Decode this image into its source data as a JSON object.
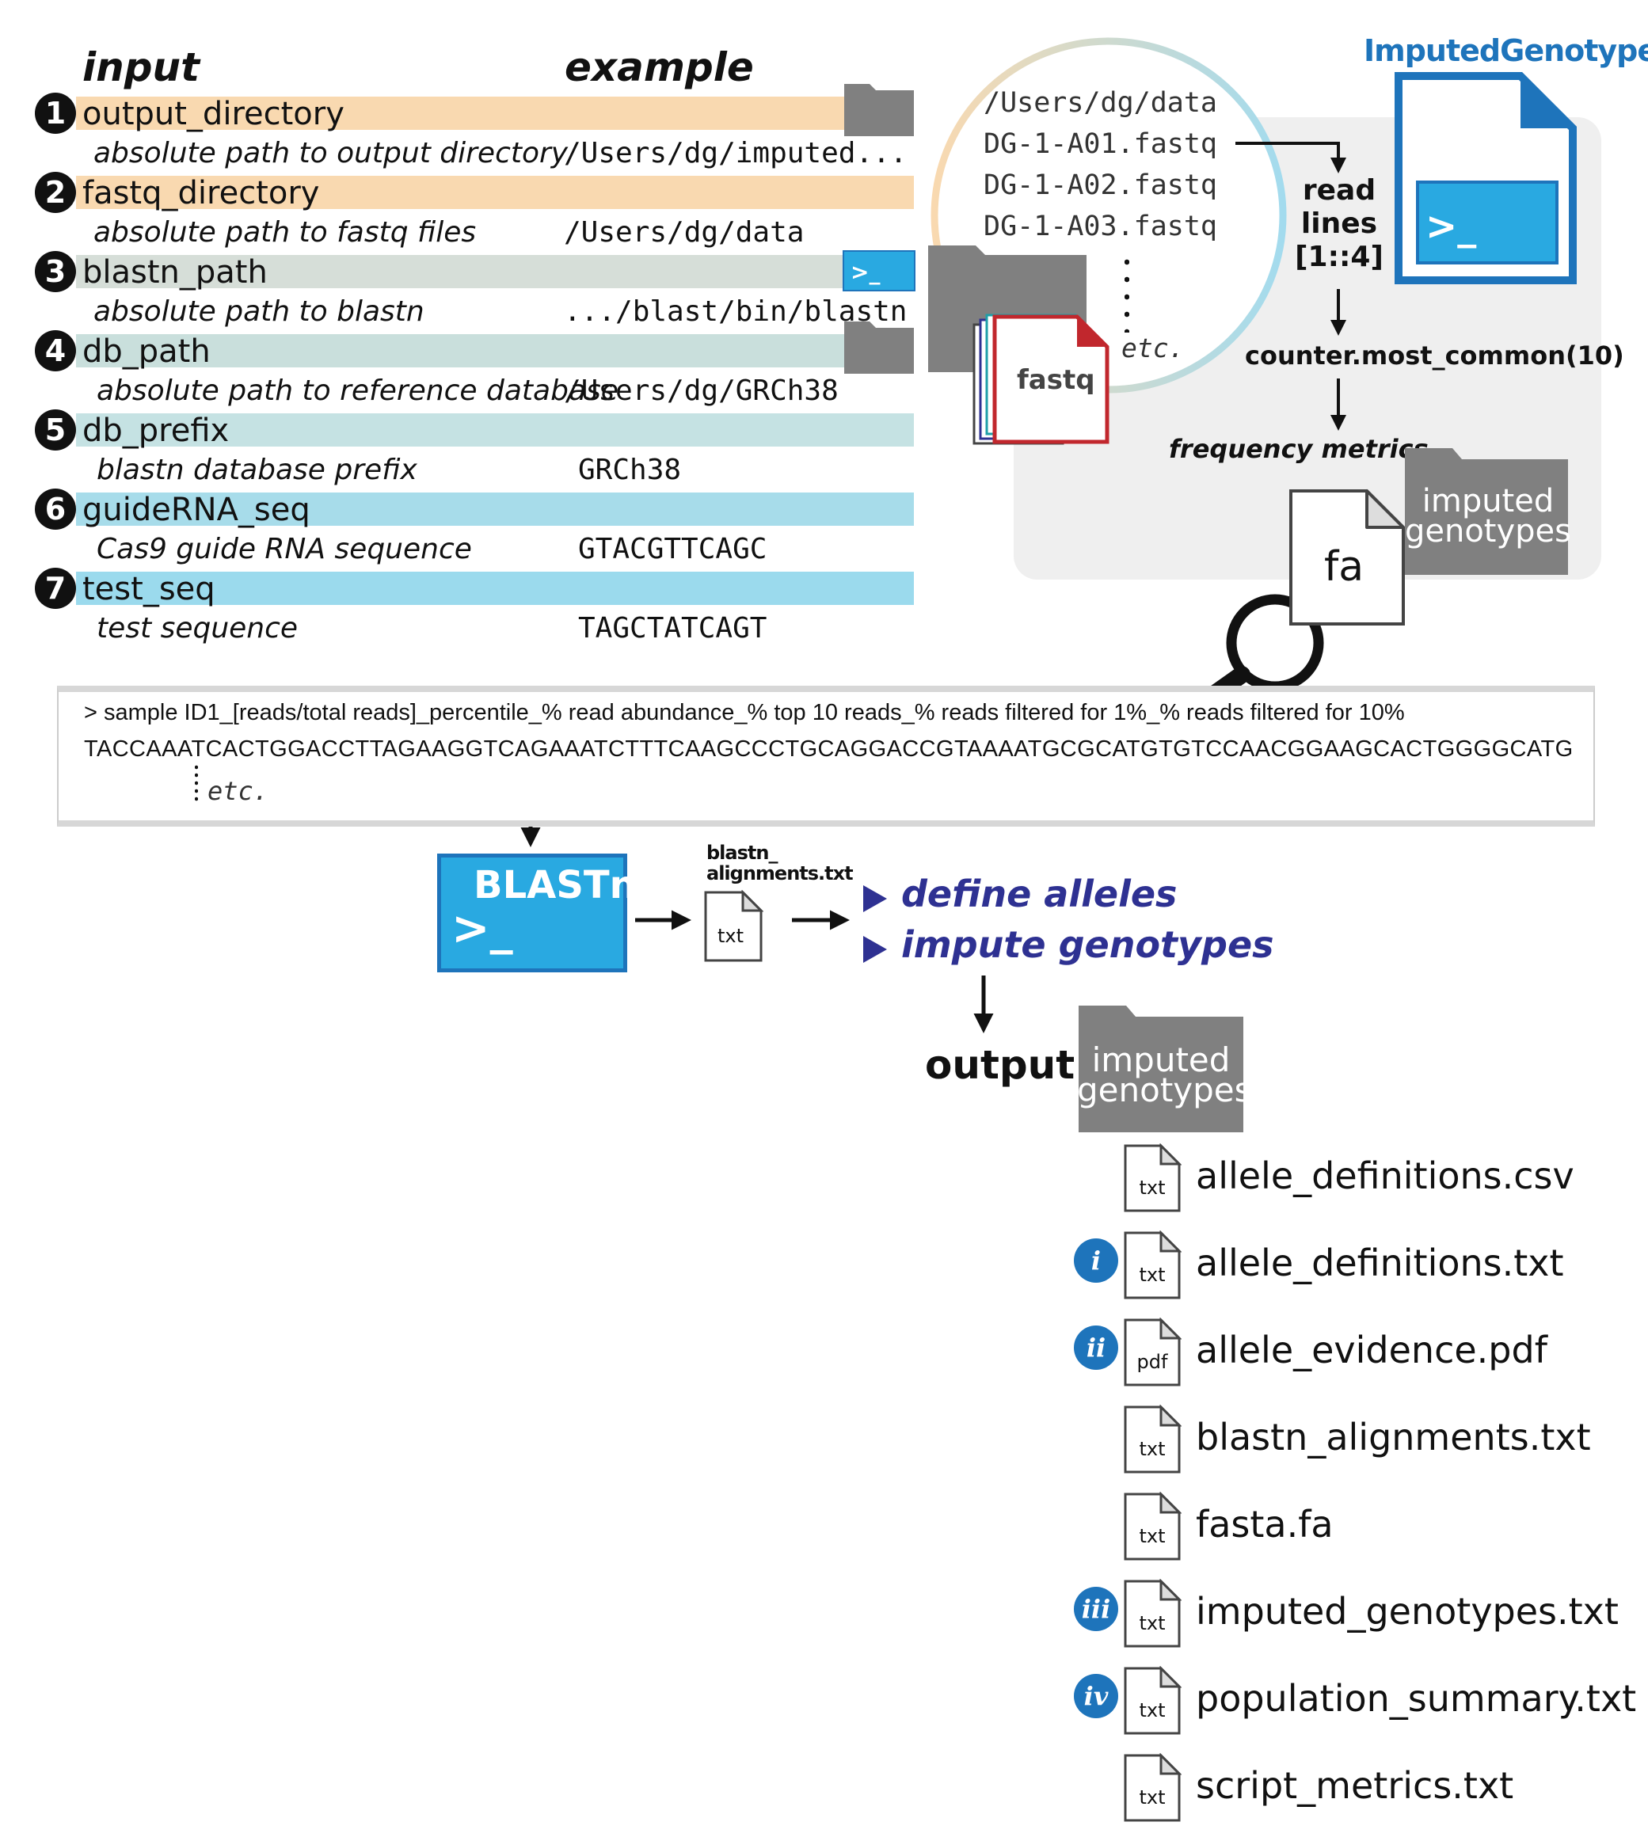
{
  "headers": {
    "input": "input",
    "example": "example"
  },
  "inputs": [
    {
      "num": "1",
      "name": "output_directory",
      "desc": "absolute path to output directory",
      "example": "/Users/dg/imputed...",
      "color": "#f9d9b0",
      "icon": "folder-icon"
    },
    {
      "num": "2",
      "name": "fastq_directory",
      "desc": "absolute path to fastq files",
      "example": "/Users/dg/data",
      "color": "#f9d9b0",
      "icon": ""
    },
    {
      "num": "3",
      "name": "blastn_path",
      "desc": "absolute path to blastn",
      "example": ".../blast/bin/blastn",
      "color": "#d6ded8",
      "icon": "terminal-icon"
    },
    {
      "num": "4",
      "name": "db_path",
      "desc": "absolute path to reference database",
      "example": "/Users/dg/GRCh38",
      "color": "#c9dfdc",
      "icon": "folder-icon"
    },
    {
      "num": "5",
      "name": "db_prefix",
      "desc": "blastn database prefix",
      "example": "GRCh38",
      "color": "#c5e2e3",
      "icon": ""
    },
    {
      "num": "6",
      "name": "guideRNA_seq",
      "desc": "Cas9 guide RNA sequence",
      "example": "GTACGTTCAGC",
      "color": "#a7dcea",
      "icon": ""
    },
    {
      "num": "7",
      "name": "test_seq",
      "desc": "test sequence",
      "example": "TAGCTATCAGT",
      "color": "#9bdaed",
      "icon": ""
    }
  ],
  "circle": {
    "lines": [
      "/Users/dg/data",
      "DG-1-A01.fastq",
      "DG-1-A02.fastq",
      "DG-1-A03.fastq"
    ],
    "etc": "etc.",
    "fastq_label": "fastq"
  },
  "app": {
    "title": "ImputedGenotypes",
    "prompt": ">_"
  },
  "process": {
    "read_lines": [
      "read",
      "lines",
      "[1::4]"
    ],
    "counter": "counter.most_common(10)",
    "frequency": "frequency metrics",
    "fa_label": "fa",
    "folder_label": [
      "imputed",
      "genotypes"
    ]
  },
  "fasta": {
    "header": "> sample ID1_[reads/total reads]_percentile_% read abundance_% top 10 reads_% reads filtered for 1%_% reads filtered for 10%",
    "sequence": "TACCAAATCACTGGACCTTAGAAGGTCAGAAATCTTTCAAGCCCTGCAGGACCGTAAAATGCGCATGTGTCCAACGGAAGCACTGGGGCATG",
    "etc": "etc."
  },
  "blast": {
    "title": "BLASTn",
    "prompt": ">_",
    "alignments_label": [
      "blastn_",
      "alignments.txt"
    ],
    "doc_ext": "txt",
    "steps": [
      "define alleles",
      "impute genotypes"
    ]
  },
  "output": {
    "label": "output:",
    "folder_label": [
      "imputed",
      "genotypes"
    ],
    "files": [
      {
        "roman": "",
        "ext": "txt",
        "name": "allele_definitions.csv"
      },
      {
        "roman": "i",
        "ext": "txt",
        "name": "allele_definitions.txt"
      },
      {
        "roman": "ii",
        "ext": "pdf",
        "name": "allele_evidence.pdf"
      },
      {
        "roman": "",
        "ext": "txt",
        "name": "blastn_alignments.txt"
      },
      {
        "roman": "",
        "ext": "txt",
        "name": "fasta.fa"
      },
      {
        "roman": "iii",
        "ext": "txt",
        "name": "imputed_genotypes.txt"
      },
      {
        "roman": "iv",
        "ext": "txt",
        "name": "population_summary.txt"
      },
      {
        "roman": "",
        "ext": "txt",
        "name": "script_metrics.txt"
      }
    ]
  },
  "colors": {
    "accent_blue": "#29a9e1",
    "dark_blue": "#1e74bb",
    "step_indigo": "#2e3192",
    "folder_gray": "#808080",
    "fastq_red": "#c1272d"
  }
}
